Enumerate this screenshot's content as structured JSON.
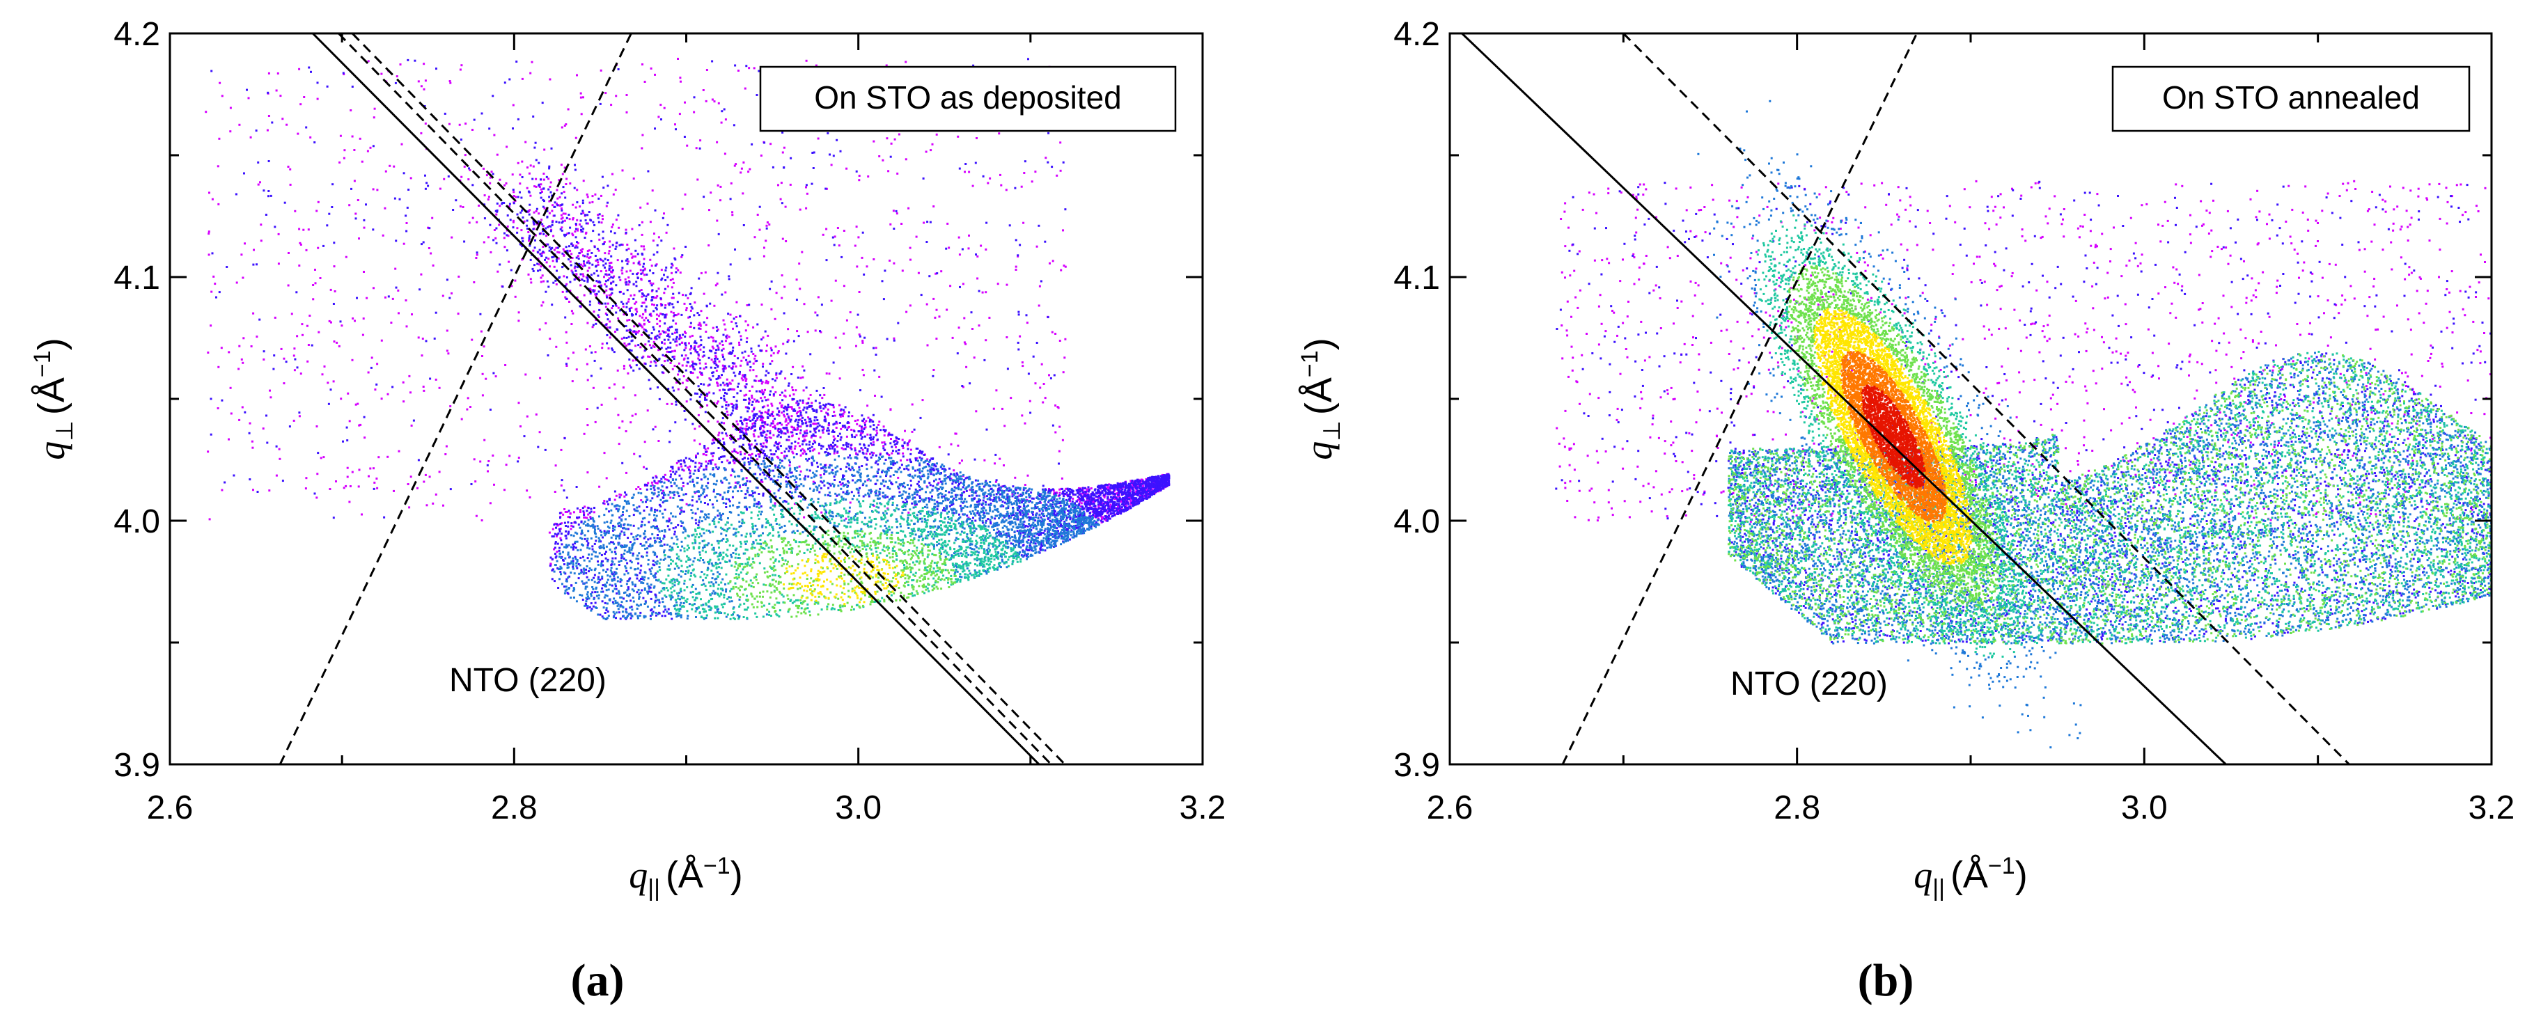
{
  "figure": {
    "caption_a": "(a)",
    "caption_b": "(b)"
  },
  "chart_data": [
    {
      "type": "scatter",
      "panel": "a",
      "subtype": "reciprocal space map (intensity-colored scatter)",
      "legend_text": "On STO as deposited",
      "annotation": "NTO (220)",
      "xlabel": {
        "symbol": "q",
        "subscript": "||",
        "unit": "(Å",
        "exp": "−1",
        "close": ")"
      },
      "ylabel": {
        "symbol": "q",
        "subscript": "⊥",
        "unit": "(Å",
        "exp": "−1",
        "close": ")"
      },
      "xlim": [
        2.6,
        3.2
      ],
      "ylim": [
        3.9,
        4.2
      ],
      "x_ticks": [
        2.6,
        2.8,
        3.0,
        3.2
      ],
      "x_tick_labels": [
        "2.6",
        "2.8",
        "3.0",
        "3.2"
      ],
      "y_ticks": [
        3.9,
        4.0,
        4.1,
        4.2
      ],
      "y_tick_labels": [
        "3.9",
        "4.0",
        "4.1",
        "4.2"
      ],
      "lines": [
        {
          "name": "relaxation line",
          "style": "solid",
          "points": [
            [
              2.683,
              4.2
            ],
            [
              3.105,
              3.9
            ]
          ]
        },
        {
          "name": "bound 1",
          "style": "dashed",
          "points": [
            [
              2.698,
              4.2
            ],
            [
              3.112,
              3.9
            ]
          ]
        },
        {
          "name": "bound 2",
          "style": "dashed",
          "points": [
            [
              2.706,
              4.2
            ],
            [
              3.12,
              3.9
            ]
          ]
        },
        {
          "name": "pseudomorphic line",
          "style": "dashed",
          "points": [
            [
              2.664,
              3.9
            ],
            [
              2.868,
              4.2
            ]
          ]
        }
      ],
      "intensity_regions": [
        {
          "name": "main lobe",
          "x": [
            2.83,
            3.18
          ],
          "y": [
            3.96,
            4.05
          ],
          "peak": [
            2.99,
            3.975
          ],
          "peak_level": "yellow-orange"
        },
        {
          "name": "streak",
          "x": [
            2.8,
            2.95
          ],
          "y": [
            4.04,
            4.13
          ],
          "peak_level": "blue"
        }
      ],
      "colormap": [
        "#ffffff",
        "#d600ff",
        "#3c12ff",
        "#1e78d8",
        "#1ec8a0",
        "#6ee14c",
        "#ffe600",
        "#ff7800",
        "#e61400"
      ]
    },
    {
      "type": "scatter",
      "panel": "b",
      "subtype": "reciprocal space map (intensity-colored scatter)",
      "legend_text": "On STO annealed",
      "annotation": "NTO (220)",
      "xlabel": {
        "symbol": "q",
        "subscript": "||",
        "unit": "(Å",
        "exp": "−1",
        "close": ")"
      },
      "ylabel": {
        "symbol": "q",
        "subscript": "⊥",
        "unit": "(Å",
        "exp": "−1",
        "close": ")"
      },
      "xlim": [
        2.6,
        3.2
      ],
      "ylim": [
        3.9,
        4.2
      ],
      "x_ticks": [
        2.6,
        2.8,
        3.0,
        3.2
      ],
      "x_tick_labels": [
        "2.6",
        "2.8",
        "3.0",
        "3.2"
      ],
      "y_ticks": [
        3.9,
        4.0,
        4.1,
        4.2
      ],
      "y_tick_labels": [
        "3.9",
        "4.0",
        "4.1",
        "4.2"
      ],
      "lines": [
        {
          "name": "relaxation line",
          "style": "solid",
          "points": [
            [
              2.607,
              4.2
            ],
            [
              3.047,
              3.9
            ]
          ]
        },
        {
          "name": "bound",
          "style": "dashed",
          "points": [
            [
              2.7,
              4.2
            ],
            [
              3.118,
              3.9
            ]
          ]
        },
        {
          "name": "pseudomorphic line",
          "style": "dashed",
          "points": [
            [
              2.665,
              3.9
            ],
            [
              2.869,
              4.2
            ]
          ]
        }
      ],
      "intensity_regions": [
        {
          "name": "main peak",
          "x": [
            2.78,
            2.93
          ],
          "y": [
            3.96,
            4.1
          ],
          "peak": [
            2.855,
            4.035
          ],
          "peak_level": "red"
        },
        {
          "name": "broad band",
          "x": [
            2.76,
            3.2
          ],
          "y": [
            3.95,
            4.1
          ],
          "peak_level": "cyan-green"
        }
      ],
      "colormap": [
        "#ffffff",
        "#d600ff",
        "#3c12ff",
        "#1e78d8",
        "#1ec8a0",
        "#6ee14c",
        "#ffe600",
        "#ff7800",
        "#e61400"
      ]
    }
  ]
}
